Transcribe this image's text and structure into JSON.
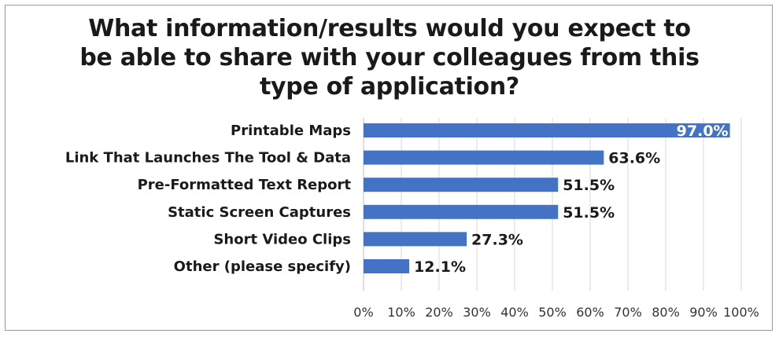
{
  "chart_data": {
    "type": "bar",
    "orientation": "horizontal",
    "title_lines": [
      "What information/results would you expect to",
      "be able to share with your colleagues from this",
      "type of application?"
    ],
    "categories": [
      "Printable Maps",
      "Link That Launches The Tool & Data",
      "Pre-Formatted Text Report",
      "Static Screen Captures",
      "Short Video Clips",
      "Other (please specify)"
    ],
    "values": [
      97.0,
      63.6,
      51.5,
      51.5,
      27.3,
      12.1
    ],
    "value_labels": [
      "97.0%",
      "63.6%",
      "51.5%",
      "51.5%",
      "27.3%",
      "12.1%"
    ],
    "xlim": [
      0,
      100
    ],
    "x_ticks": [
      "0%",
      "10%",
      "20%",
      "30%",
      "40%",
      "50%",
      "60%",
      "70%",
      "80%",
      "90%",
      "100%"
    ],
    "bar_color": "#4472c4",
    "grid": "vertical",
    "legend": "none"
  }
}
